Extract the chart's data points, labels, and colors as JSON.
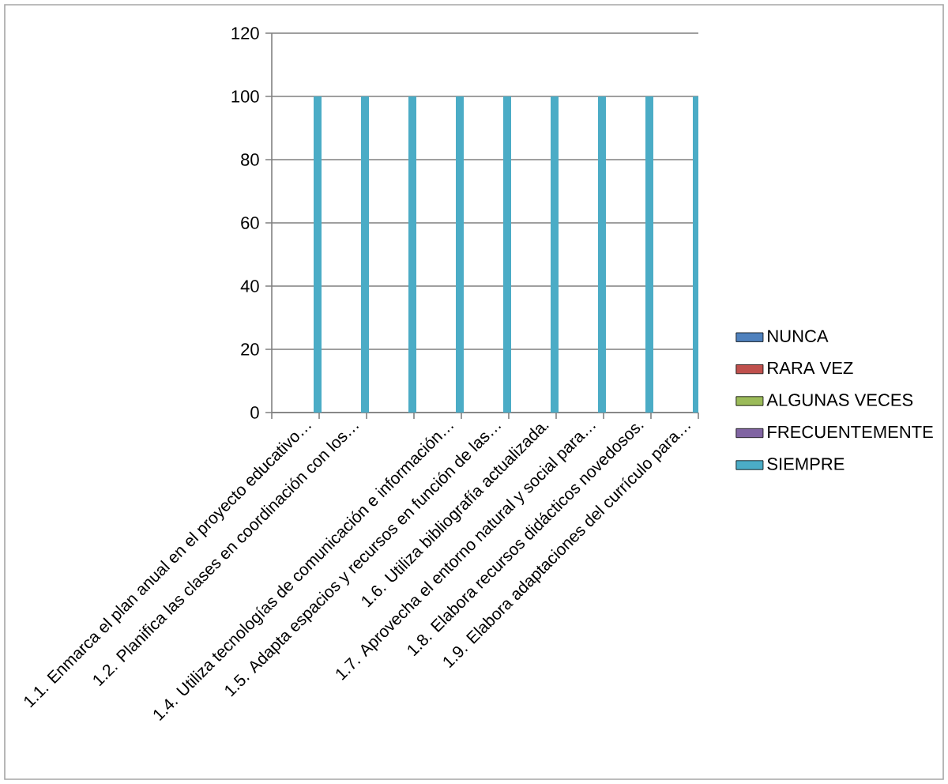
{
  "chart_data": {
    "type": "bar",
    "categories": [
      "1.1. Enmarca el plan anual en el proyecto educativo…",
      "1.2. Planifica las clases en coordinación con los…",
      null,
      "1.4. Utiliza tecnologías de comunicación e información…",
      "1.5. Adapta espacios y recursos en función de las…",
      "1.6. Utiliza bibliografía actualizada.",
      "1.7. Aprovecha el entorno natural y social para…",
      "1.8. Elabora recursos didácticos novedosos.",
      "1.9. Elabora adaptaciones del currículo para…"
    ],
    "series": [
      {
        "name": "NUNCA",
        "color": "#4f81bd",
        "values": [
          0,
          0,
          0,
          0,
          0,
          0,
          0,
          0,
          0
        ]
      },
      {
        "name": "RARA VEZ",
        "color": "#c0504d",
        "values": [
          0,
          0,
          0,
          0,
          0,
          0,
          0,
          0,
          0
        ]
      },
      {
        "name": "ALGUNAS VECES",
        "color": "#9bbb59",
        "values": [
          0,
          0,
          0,
          0,
          0,
          0,
          0,
          0,
          0
        ]
      },
      {
        "name": "FRECUENTEMENTE",
        "color": "#8064a2",
        "values": [
          0,
          0,
          0,
          0,
          0,
          0,
          0,
          0,
          0
        ]
      },
      {
        "name": "SIEMPRE",
        "color": "#4bacc6",
        "values": [
          100,
          100,
          100,
          100,
          100,
          100,
          100,
          100,
          100
        ]
      }
    ],
    "ylim": [
      0,
      120
    ],
    "yticks": [
      0,
      20,
      40,
      60,
      80,
      100,
      120
    ],
    "grid": "y",
    "legend": "right"
  }
}
